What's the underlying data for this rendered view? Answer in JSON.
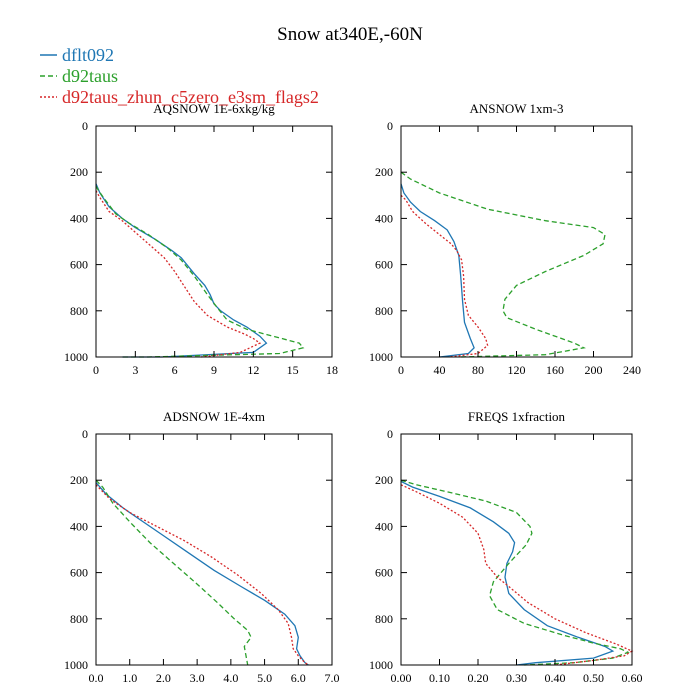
{
  "figure": {
    "title": "Snow at340E,-60N"
  },
  "legend": {
    "placement": "top-left",
    "entries": [
      {
        "label": "dflt092",
        "color": "#1f77b4",
        "dash": "solid"
      },
      {
        "label": "d92taus",
        "color": "#2ca02c",
        "dash": "dashed"
      },
      {
        "label": "d92taus_zhun_c5zero_e3sm_flags2",
        "color": "#d62728",
        "dash": "dotted"
      }
    ]
  },
  "chart_data": [
    {
      "type": "line",
      "title": "AQSNOW  1E-6xkg/kg",
      "xlabel": "",
      "ylabel": "",
      "xlim": [
        0,
        18
      ],
      "ylim": [
        1000,
        0
      ],
      "x_ticks": [
        0,
        3,
        6,
        9,
        12,
        15,
        18
      ],
      "x_tick_labels": [
        "0",
        "3",
        "6",
        "9",
        "12",
        "15",
        "18"
      ],
      "y_ticks": [
        0,
        200,
        400,
        600,
        800,
        1000
      ],
      "y_tick_labels": [
        "0",
        "200",
        "400",
        "600",
        "800",
        "1000"
      ],
      "grid": false,
      "series": [
        {
          "name": "dflt092",
          "points": [
            [
              0,
              250
            ],
            [
              0.3,
              290
            ],
            [
              1,
              350
            ],
            [
              2,
              400
            ],
            [
              3,
              440
            ],
            [
              4.5,
              490
            ],
            [
              5.8,
              540
            ],
            [
              6.5,
              570
            ],
            [
              7.5,
              640
            ],
            [
              8.3,
              690
            ],
            [
              8.7,
              730
            ],
            [
              9,
              770
            ],
            [
              9.5,
              800
            ],
            [
              10.5,
              840
            ],
            [
              11.5,
              870
            ],
            [
              12.5,
              910
            ],
            [
              13,
              940
            ],
            [
              12,
              980
            ],
            [
              5,
              1000
            ],
            [
              2,
              1000
            ]
          ]
        },
        {
          "name": "d92taus",
          "points": [
            [
              0,
              260
            ],
            [
              0.2,
              280
            ],
            [
              0.7,
              320
            ],
            [
              1.5,
              380
            ],
            [
              2.5,
              420
            ],
            [
              4,
              470
            ],
            [
              5.5,
              530
            ],
            [
              6.5,
              580
            ],
            [
              7.5,
              650
            ],
            [
              8.5,
              730
            ],
            [
              9.3,
              790
            ],
            [
              10,
              840
            ],
            [
              11.5,
              880
            ],
            [
              13.5,
              910
            ],
            [
              15.5,
              940
            ],
            [
              15.8,
              960
            ],
            [
              14,
              985
            ],
            [
              4,
              1000
            ],
            [
              2,
              1000
            ]
          ]
        },
        {
          "name": "d92taus_zhun_c5zero_e3sm_flags2",
          "points": [
            [
              0,
              280
            ],
            [
              0.3,
              310
            ],
            [
              1,
              370
            ],
            [
              2,
              410
            ],
            [
              3,
              460
            ],
            [
              4,
              510
            ],
            [
              5.2,
              570
            ],
            [
              6,
              630
            ],
            [
              6.8,
              700
            ],
            [
              7.5,
              760
            ],
            [
              8.5,
              820
            ],
            [
              10,
              870
            ],
            [
              11.3,
              900
            ],
            [
              12,
              920
            ],
            [
              12.5,
              940
            ],
            [
              11,
              980
            ],
            [
              8,
              1000
            ]
          ]
        }
      ]
    },
    {
      "type": "line",
      "title": "ANSNOW  1xm-3",
      "xlabel": "",
      "ylabel": "",
      "xlim": [
        0,
        240
      ],
      "ylim": [
        1000,
        0
      ],
      "x_ticks": [
        0,
        40,
        80,
        120,
        160,
        200,
        240
      ],
      "x_tick_labels": [
        "0",
        "40",
        "80",
        "120",
        "160",
        "200",
        "240"
      ],
      "y_ticks": [
        0,
        200,
        400,
        600,
        800,
        1000
      ],
      "y_tick_labels": [
        "0",
        "200",
        "400",
        "600",
        "800",
        "1000"
      ],
      "grid": false,
      "series": [
        {
          "name": "dflt092",
          "points": [
            [
              0,
              250
            ],
            [
              3,
              290
            ],
            [
              10,
              330
            ],
            [
              20,
              370
            ],
            [
              35,
              410
            ],
            [
              48,
              450
            ],
            [
              55,
              500
            ],
            [
              60,
              560
            ],
            [
              62,
              650
            ],
            [
              64,
              760
            ],
            [
              66,
              850
            ],
            [
              72,
              920
            ],
            [
              76,
              960
            ],
            [
              70,
              985
            ],
            [
              40,
              1000
            ]
          ]
        },
        {
          "name": "d92taus",
          "points": [
            [
              0,
              200
            ],
            [
              10,
              230
            ],
            [
              40,
              290
            ],
            [
              90,
              360
            ],
            [
              150,
              410
            ],
            [
              200,
              440
            ],
            [
              212,
              470
            ],
            [
              210,
              510
            ],
            [
              190,
              560
            ],
            [
              150,
              630
            ],
            [
              120,
              690
            ],
            [
              108,
              750
            ],
            [
              106,
              800
            ],
            [
              110,
              830
            ],
            [
              140,
              880
            ],
            [
              180,
              940
            ],
            [
              190,
              960
            ],
            [
              150,
              990
            ],
            [
              60,
              1000
            ]
          ]
        },
        {
          "name": "d92taus_zhun_c5zero_e3sm_flags2",
          "points": [
            [
              0,
              300
            ],
            [
              5,
              320
            ],
            [
              12,
              370
            ],
            [
              25,
              420
            ],
            [
              40,
              470
            ],
            [
              52,
              510
            ],
            [
              58,
              540
            ],
            [
              63,
              580
            ],
            [
              65,
              650
            ],
            [
              66,
              750
            ],
            [
              70,
              820
            ],
            [
              80,
              870
            ],
            [
              88,
              920
            ],
            [
              90,
              950
            ],
            [
              80,
              985
            ],
            [
              50,
              1000
            ]
          ]
        }
      ]
    },
    {
      "type": "line",
      "title": "ADSNOW  1E-4xm",
      "xlabel": "",
      "ylabel": "",
      "xlim": [
        0,
        7
      ],
      "ylim": [
        1000,
        0
      ],
      "x_ticks": [
        0,
        1,
        2,
        3,
        4,
        5,
        6,
        7
      ],
      "x_tick_labels": [
        "0.0",
        "1.0",
        "2.0",
        "3.0",
        "4.0",
        "5.0",
        "6.0",
        "7.0"
      ],
      "y_ticks": [
        0,
        200,
        400,
        600,
        800,
        1000
      ],
      "y_tick_labels": [
        "0",
        "200",
        "400",
        "600",
        "800",
        "1000"
      ],
      "grid": false,
      "series": [
        {
          "name": "dflt092",
          "points": [
            [
              0,
              210
            ],
            [
              0.3,
              260
            ],
            [
              0.8,
              320
            ],
            [
              1.3,
              370
            ],
            [
              2,
              440
            ],
            [
              2.7,
              510
            ],
            [
              3.5,
              590
            ],
            [
              4.3,
              660
            ],
            [
              5,
              720
            ],
            [
              5.6,
              780
            ],
            [
              5.9,
              830
            ],
            [
              6,
              880
            ],
            [
              5.95,
              930
            ],
            [
              6.05,
              960
            ],
            [
              6.2,
              990
            ],
            [
              6.3,
              1000
            ]
          ]
        },
        {
          "name": "d92taus",
          "points": [
            [
              0,
              200
            ],
            [
              0.2,
              230
            ],
            [
              0.5,
              300
            ],
            [
              1,
              380
            ],
            [
              1.6,
              470
            ],
            [
              2.3,
              560
            ],
            [
              3,
              650
            ],
            [
              3.6,
              730
            ],
            [
              4.1,
              800
            ],
            [
              4.5,
              850
            ],
            [
              4.6,
              880
            ],
            [
              4.4,
              920
            ],
            [
              4.45,
              960
            ],
            [
              4.5,
              1000
            ]
          ]
        },
        {
          "name": "d92taus_zhun_c5zero_e3sm_flags2",
          "points": [
            [
              0,
              220
            ],
            [
              0.4,
              280
            ],
            [
              1,
              340
            ],
            [
              1.8,
              400
            ],
            [
              2.6,
              460
            ],
            [
              3.4,
              530
            ],
            [
              4.2,
              610
            ],
            [
              4.9,
              690
            ],
            [
              5.4,
              760
            ],
            [
              5.7,
              820
            ],
            [
              5.8,
              880
            ],
            [
              5.85,
              930
            ],
            [
              6,
              960
            ],
            [
              6.2,
              990
            ],
            [
              6.3,
              1000
            ]
          ]
        }
      ]
    },
    {
      "type": "line",
      "title": "FREQS  1xfraction",
      "xlabel": "",
      "ylabel": "",
      "xlim": [
        0,
        0.6
      ],
      "ylim": [
        1000,
        0
      ],
      "x_ticks": [
        0,
        0.1,
        0.2,
        0.3,
        0.4,
        0.5,
        0.6
      ],
      "x_tick_labels": [
        "0.00",
        "0.10",
        "0.20",
        "0.30",
        "0.40",
        "0.50",
        "0.60"
      ],
      "y_ticks": [
        0,
        200,
        400,
        600,
        800,
        1000
      ],
      "y_tick_labels": [
        "0",
        "200",
        "400",
        "600",
        "800",
        "1000"
      ],
      "grid": false,
      "series": [
        {
          "name": "dflt092",
          "points": [
            [
              0,
              205
            ],
            [
              0.03,
              230
            ],
            [
              0.1,
              270
            ],
            [
              0.18,
              320
            ],
            [
              0.24,
              380
            ],
            [
              0.28,
              430
            ],
            [
              0.295,
              470
            ],
            [
              0.29,
              510
            ],
            [
              0.275,
              560
            ],
            [
              0.27,
              620
            ],
            [
              0.28,
              690
            ],
            [
              0.32,
              760
            ],
            [
              0.38,
              830
            ],
            [
              0.46,
              880
            ],
            [
              0.53,
              920
            ],
            [
              0.55,
              940
            ],
            [
              0.5,
              970
            ],
            [
              0.35,
              990
            ],
            [
              0.3,
              1000
            ]
          ]
        },
        {
          "name": "d92taus",
          "points": [
            [
              0,
              200
            ],
            [
              0.04,
              220
            ],
            [
              0.12,
              250
            ],
            [
              0.22,
              290
            ],
            [
              0.3,
              340
            ],
            [
              0.335,
              400
            ],
            [
              0.34,
              430
            ],
            [
              0.325,
              480
            ],
            [
              0.28,
              560
            ],
            [
              0.24,
              640
            ],
            [
              0.23,
              700
            ],
            [
              0.25,
              760
            ],
            [
              0.32,
              820
            ],
            [
              0.42,
              870
            ],
            [
              0.5,
              905
            ],
            [
              0.57,
              930
            ],
            [
              0.59,
              945
            ],
            [
              0.55,
              970
            ],
            [
              0.45,
              990
            ],
            [
              0.32,
              1000
            ]
          ]
        },
        {
          "name": "d92taus_zhun_c5zero_e3sm_flags2",
          "points": [
            [
              0,
              220
            ],
            [
              0.04,
              250
            ],
            [
              0.1,
              300
            ],
            [
              0.16,
              360
            ],
            [
              0.2,
              430
            ],
            [
              0.215,
              500
            ],
            [
              0.22,
              560
            ],
            [
              0.25,
              620
            ],
            [
              0.28,
              660
            ],
            [
              0.33,
              730
            ],
            [
              0.4,
              800
            ],
            [
              0.48,
              860
            ],
            [
              0.56,
              910
            ],
            [
              0.6,
              940
            ],
            [
              0.58,
              960
            ],
            [
              0.5,
              980
            ],
            [
              0.4,
              1000
            ]
          ]
        }
      ]
    }
  ]
}
